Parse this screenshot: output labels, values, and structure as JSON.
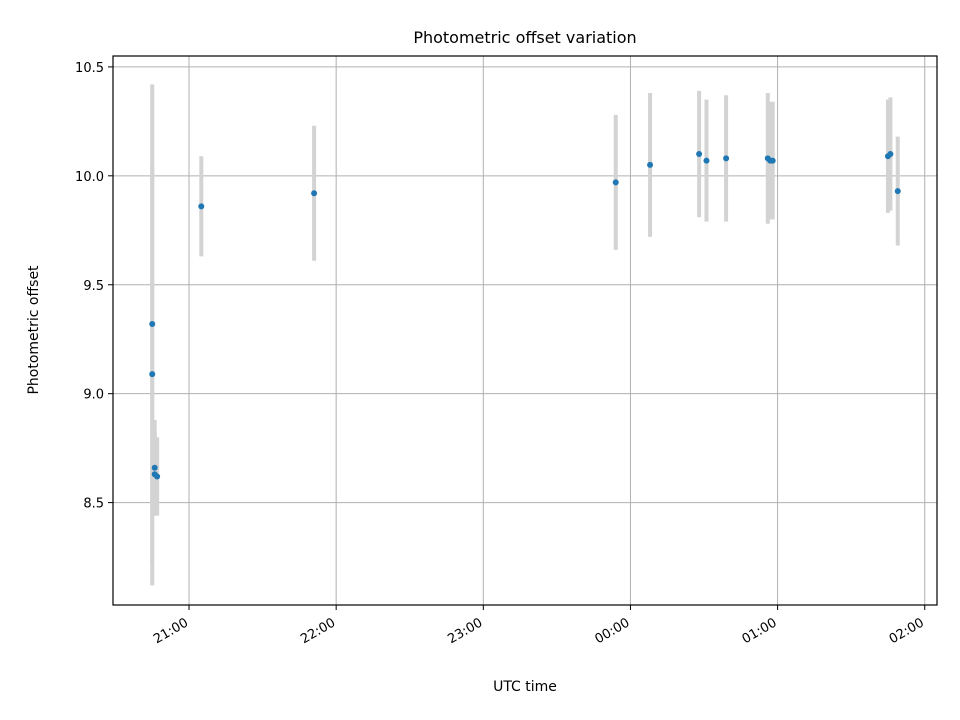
{
  "chart_data": {
    "type": "scatter",
    "title": "Photometric offset variation",
    "xlabel": "UTC time",
    "ylabel": "Photometric offset",
    "grid": true,
    "x_axis_kind": "time",
    "xlim": [
      "20:29",
      "02:05"
    ],
    "ylim": [
      8.03,
      10.55
    ],
    "x_ticks": [
      "21:00",
      "22:00",
      "23:00",
      "00:00",
      "01:00",
      "02:00"
    ],
    "y_ticks": [
      8.5,
      9.0,
      9.5,
      10.0,
      10.5
    ],
    "marker_color": "#1f77b4",
    "errorbar_color": "#d3d3d3",
    "points": [
      {
        "x": "20:45",
        "y": 9.32,
        "yerr": 1.1
      },
      {
        "x": "20:45",
        "y": 9.09,
        "yerr": 0.97
      },
      {
        "x": "20:46",
        "y": 8.66,
        "yerr": 0.22
      },
      {
        "x": "20:46",
        "y": 8.63,
        "yerr": 0.19
      },
      {
        "x": "20:47",
        "y": 8.62,
        "yerr": 0.18
      },
      {
        "x": "21:05",
        "y": 9.86,
        "yerr": 0.23
      },
      {
        "x": "21:51",
        "y": 9.92,
        "yerr": 0.31
      },
      {
        "x": "23:54",
        "y": 9.97,
        "yerr": 0.31
      },
      {
        "x": "00:08",
        "y": 10.05,
        "yerr": 0.33
      },
      {
        "x": "00:28",
        "y": 10.1,
        "yerr": 0.29
      },
      {
        "x": "00:31",
        "y": 10.07,
        "yerr": 0.28
      },
      {
        "x": "00:39",
        "y": 10.08,
        "yerr": 0.29
      },
      {
        "x": "00:56",
        "y": 10.08,
        "yerr": 0.3
      },
      {
        "x": "00:57",
        "y": 10.07,
        "yerr": 0.27
      },
      {
        "x": "00:58",
        "y": 10.07,
        "yerr": 0.27
      },
      {
        "x": "01:45",
        "y": 10.09,
        "yerr": 0.26
      },
      {
        "x": "01:46",
        "y": 10.1,
        "yerr": 0.26
      },
      {
        "x": "01:49",
        "y": 9.93,
        "yerr": 0.25
      }
    ]
  }
}
